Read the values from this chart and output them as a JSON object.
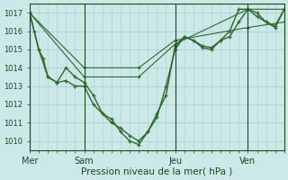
{
  "background_color": "#cce8e8",
  "grid_color": "#aacccc",
  "line_color": "#2d6a2d",
  "text_color": "#1a4a1a",
  "xlabel_text": "Pression niveau de la mer( hPa )",
  "ylim": [
    1009.5,
    1017.5
  ],
  "yticks": [
    1010,
    1011,
    1012,
    1013,
    1014,
    1015,
    1016,
    1017
  ],
  "xlim": [
    0,
    168
  ],
  "day_labels": [
    "Mer",
    "Sam",
    "Jeu",
    "Ven"
  ],
  "day_positions": [
    0,
    36,
    96,
    144
  ],
  "vline_positions": [
    0,
    36,
    96,
    144
  ],
  "series": [
    {
      "x": [
        0,
        3,
        6,
        9,
        12,
        18,
        24,
        30,
        36,
        42,
        48,
        54,
        60,
        66,
        72,
        78,
        84,
        90,
        96,
        102,
        108,
        114,
        120,
        126,
        132,
        138,
        144,
        150,
        156,
        162,
        168
      ],
      "y": [
        1017.0,
        1016.0,
        1015.0,
        1014.5,
        1013.5,
        1013.2,
        1013.3,
        1013.0,
        1013.0,
        1012.0,
        1011.5,
        1011.2,
        1010.5,
        1010.0,
        1009.8,
        1010.5,
        1011.3,
        1013.0,
        1015.0,
        1015.7,
        1015.5,
        1015.1,
        1015.0,
        1015.5,
        1016.0,
        1017.2,
        1017.2,
        1017.0,
        1016.5,
        1016.3,
        1017.2
      ],
      "marker": "+",
      "linestyle": "-",
      "linewidth": 1.0
    },
    {
      "x": [
        0,
        6,
        12,
        18,
        24,
        30,
        36,
        42,
        48,
        54,
        60,
        66,
        72,
        78,
        84,
        90,
        96,
        102,
        108,
        114,
        120,
        126,
        132,
        138,
        144,
        150,
        156,
        162,
        168
      ],
      "y": [
        1017.0,
        1015.0,
        1013.5,
        1013.2,
        1014.0,
        1013.5,
        1013.2,
        1012.5,
        1011.5,
        1011.0,
        1010.7,
        1010.3,
        1010.0,
        1010.5,
        1011.5,
        1012.5,
        1015.2,
        1015.7,
        1015.5,
        1015.2,
        1015.1,
        1015.5,
        1015.7,
        1016.5,
        1017.2,
        1016.8,
        1016.5,
        1016.2,
        1017.2
      ],
      "marker": "+",
      "linestyle": "-",
      "linewidth": 1.0
    },
    {
      "x": [
        0,
        36,
        72,
        96,
        144,
        168
      ],
      "y": [
        1017.0,
        1013.5,
        1013.5,
        1015.3,
        1017.2,
        1017.2
      ],
      "marker": "+",
      "linestyle": "-",
      "linewidth": 0.8
    },
    {
      "x": [
        0,
        36,
        72,
        96,
        144,
        168
      ],
      "y": [
        1017.0,
        1014.0,
        1014.0,
        1015.5,
        1016.2,
        1016.5
      ],
      "marker": "+",
      "linestyle": "-",
      "linewidth": 0.8
    }
  ]
}
